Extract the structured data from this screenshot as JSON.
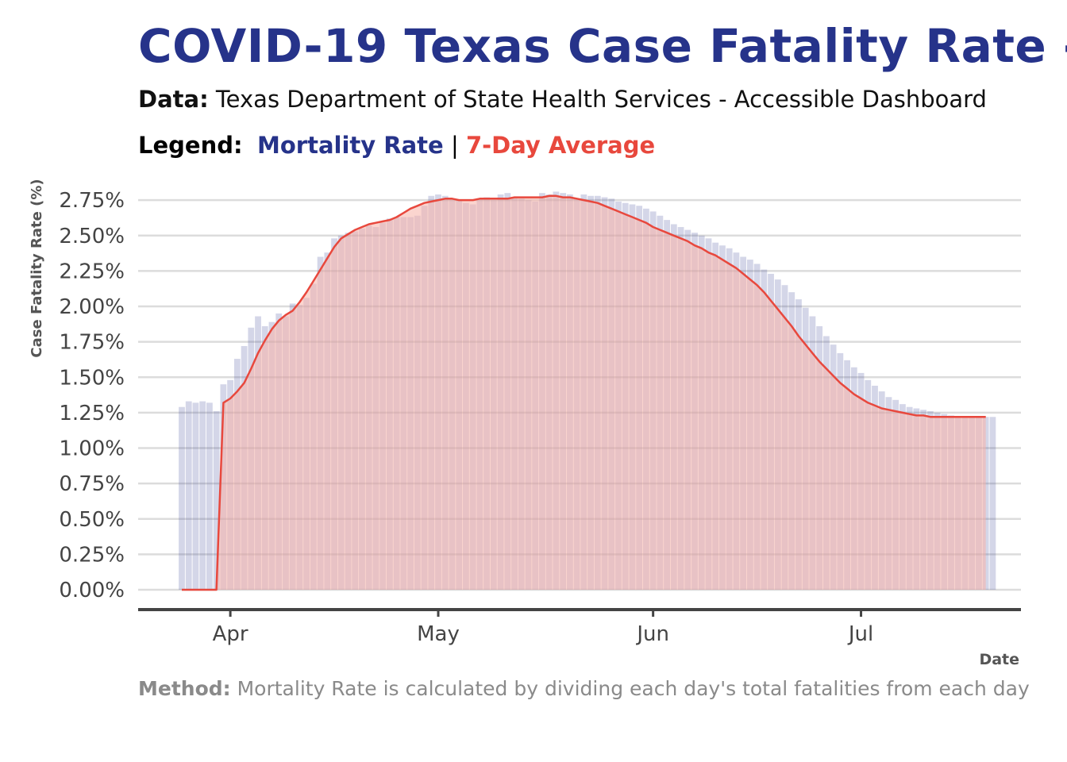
{
  "title": "COVID-19 Texas Case Fatality Rate -",
  "subtitle": {
    "label": "Data:",
    "text": "Texas Department of State Health Services - Accessible Dashboard"
  },
  "legend": {
    "label": "Legend:",
    "sep": "|"
  },
  "caption": {
    "label": "Method:",
    "text": "Mortality Rate is calculated by dividing each day's total fatalities from each day"
  },
  "colors": {
    "title": "#26338a",
    "bars": "#26338a",
    "line": "#e8483d",
    "area": "#f7b3a8",
    "grid": "#dcdcdc",
    "axis": "#444444"
  },
  "chart_data": {
    "type": "bar",
    "xlabel": "Date",
    "ylabel": "Case Fatality Rate (%)",
    "ylim": [
      0,
      2.85
    ],
    "y_ticks": [
      "0.00%",
      "0.25%",
      "0.50%",
      "0.75%",
      "1.00%",
      "1.25%",
      "1.50%",
      "1.75%",
      "2.00%",
      "2.25%",
      "2.50%",
      "2.75%"
    ],
    "x_ticks": [
      {
        "label": "Apr",
        "date": "2020-04-01"
      },
      {
        "label": "May",
        "date": "2020-05-01"
      },
      {
        "label": "Jun",
        "date": "2020-06-01"
      },
      {
        "label": "Jul",
        "date": "2020-07-01"
      }
    ],
    "grid": true,
    "legend_placement": "top",
    "x_start": "2020-03-25",
    "x_end": "2020-07-20",
    "series": [
      {
        "name": "Mortality Rate",
        "type": "bar",
        "values": [
          1.29,
          1.33,
          1.32,
          1.33,
          1.32,
          1.26,
          1.45,
          1.48,
          1.63,
          1.72,
          1.85,
          1.93,
          1.86,
          1.89,
          1.95,
          1.93,
          2.02,
          2.01,
          2.06,
          2.16,
          2.35,
          2.38,
          2.48,
          2.5,
          2.52,
          2.53,
          2.55,
          2.57,
          2.56,
          2.59,
          2.62,
          2.63,
          2.63,
          2.63,
          2.64,
          2.71,
          2.78,
          2.79,
          2.78,
          2.76,
          2.75,
          2.73,
          2.72,
          2.76,
          2.77,
          2.75,
          2.79,
          2.8,
          2.77,
          2.76,
          2.75,
          2.74,
          2.8,
          2.79,
          2.81,
          2.8,
          2.79,
          2.76,
          2.79,
          2.78,
          2.78,
          2.77,
          2.76,
          2.74,
          2.73,
          2.72,
          2.71,
          2.69,
          2.67,
          2.64,
          2.61,
          2.58,
          2.56,
          2.54,
          2.52,
          2.5,
          2.48,
          2.45,
          2.43,
          2.41,
          2.38,
          2.35,
          2.33,
          2.3,
          2.26,
          2.23,
          2.19,
          2.15,
          2.1,
          2.05,
          1.99,
          1.93,
          1.86,
          1.79,
          1.73,
          1.67,
          1.62,
          1.57,
          1.53,
          1.48,
          1.44,
          1.4,
          1.36,
          1.34,
          1.31,
          1.29,
          1.28,
          1.27,
          1.26,
          1.25,
          1.24,
          1.23,
          1.22,
          1.22,
          1.22,
          1.22,
          1.22,
          1.22
        ]
      },
      {
        "name": "7-Day Average",
        "type": "line",
        "values": [
          0,
          0,
          0,
          0,
          0,
          0,
          1.32,
          1.35,
          1.4,
          1.46,
          1.56,
          1.67,
          1.76,
          1.84,
          1.9,
          1.94,
          1.97,
          2.03,
          2.1,
          2.18,
          2.26,
          2.34,
          2.42,
          2.48,
          2.51,
          2.54,
          2.56,
          2.58,
          2.59,
          2.6,
          2.61,
          2.63,
          2.66,
          2.69,
          2.71,
          2.73,
          2.74,
          2.75,
          2.76,
          2.76,
          2.75,
          2.75,
          2.75,
          2.76,
          2.76,
          2.76,
          2.76,
          2.76,
          2.77,
          2.77,
          2.77,
          2.77,
          2.77,
          2.78,
          2.78,
          2.77,
          2.77,
          2.76,
          2.75,
          2.74,
          2.73,
          2.71,
          2.69,
          2.67,
          2.65,
          2.63,
          2.61,
          2.59,
          2.56,
          2.54,
          2.52,
          2.5,
          2.48,
          2.46,
          2.43,
          2.41,
          2.38,
          2.36,
          2.33,
          2.3,
          2.27,
          2.23,
          2.19,
          2.15,
          2.1,
          2.04,
          1.98,
          1.92,
          1.86,
          1.79,
          1.73,
          1.67,
          1.61,
          1.56,
          1.51,
          1.46,
          1.42,
          1.38,
          1.35,
          1.32,
          1.3,
          1.28,
          1.27,
          1.26,
          1.25,
          1.24,
          1.23,
          1.23,
          1.22,
          1.22,
          1.22,
          1.22,
          1.22,
          1.22,
          1.22,
          1.22,
          1.22
        ]
      }
    ]
  }
}
